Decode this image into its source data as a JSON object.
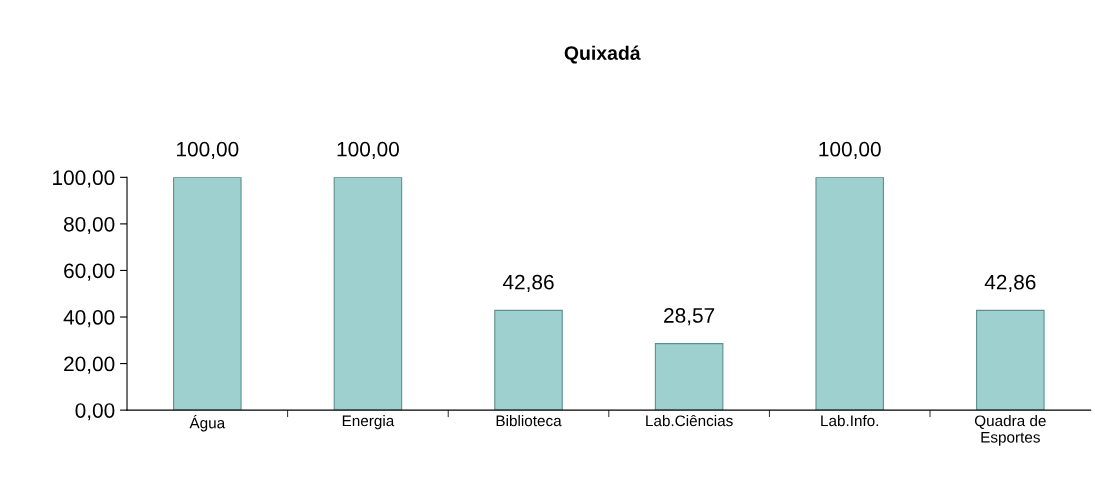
{
  "chart_data": {
    "type": "bar",
    "title": "Quixadá",
    "categories": [
      "Água",
      "Energia",
      "Biblioteca",
      "Lab.Ciências",
      "Lab.Info.",
      "Quadra de\nEsportes"
    ],
    "values": [
      100,
      100,
      42.86,
      28.57,
      100,
      42.86
    ],
    "value_labels": [
      "100,00",
      "100,00",
      "42,86",
      "28,57",
      "100,00",
      "42,86"
    ],
    "color": "#9fd0d0",
    "ylim": [
      0,
      100
    ],
    "yticks": [
      {
        "value": 0,
        "label": "0,00"
      },
      {
        "value": 20,
        "label": "20,00"
      },
      {
        "value": 40,
        "label": "40,00"
      },
      {
        "value": 60,
        "label": "60,00"
      },
      {
        "value": 80,
        "label": "80,00"
      },
      {
        "value": 100,
        "label": "100,00"
      }
    ],
    "grid": false,
    "legend": false
  }
}
